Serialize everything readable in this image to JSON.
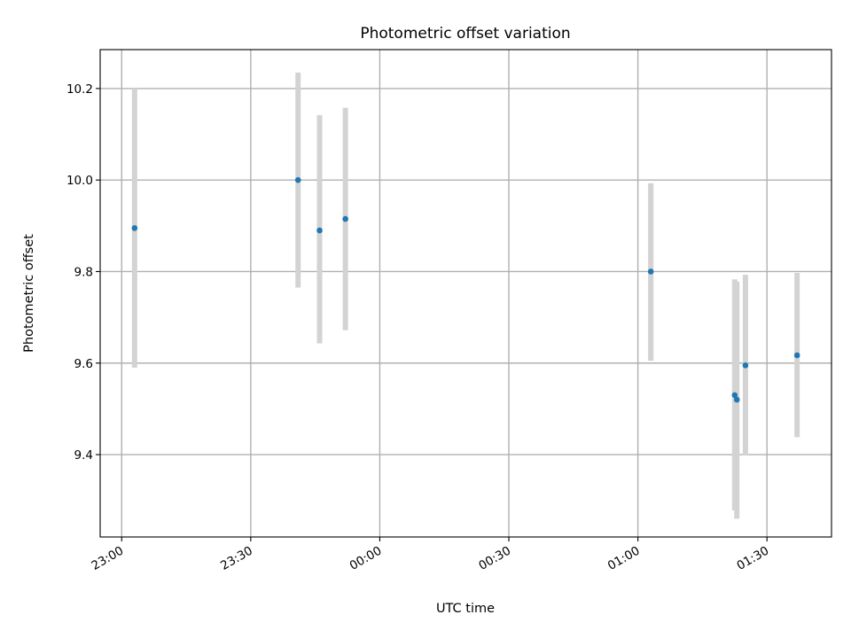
{
  "chart_data": {
    "type": "scatter",
    "title": "Photometric offset variation",
    "xlabel": "UTC time",
    "ylabel": "Photometric offset",
    "x_unit": "UTC clock time (HH:MM, crossing midnight)",
    "x_ticks": [
      "23:00",
      "23:30",
      "00:00",
      "00:30",
      "01:00",
      "01:30"
    ],
    "y_ticks": [
      "9.4",
      "9.6",
      "9.8",
      "10.0",
      "10.2"
    ],
    "xlim": [
      "22:55",
      "01:45"
    ],
    "ylim": [
      9.22,
      10.285
    ],
    "grid": true,
    "colors": {
      "point": "#1f77b4",
      "errorbar": "#d3d3d3",
      "grid": "#b0b0b0"
    },
    "points": [
      {
        "x": "23:03",
        "y": 9.895,
        "err_low": 9.59,
        "err_high": 10.2
      },
      {
        "x": "23:41",
        "y": 10.0,
        "err_low": 9.765,
        "err_high": 10.235
      },
      {
        "x": "23:46",
        "y": 9.89,
        "err_low": 9.643,
        "err_high": 10.142
      },
      {
        "x": "23:52",
        "y": 9.915,
        "err_low": 9.672,
        "err_high": 10.158
      },
      {
        "x": "01:03",
        "y": 9.8,
        "err_low": 9.605,
        "err_high": 9.993
      },
      {
        "x": "01:22.5",
        "y": 9.53,
        "err_low": 9.278,
        "err_high": 9.783
      },
      {
        "x": "01:23",
        "y": 9.52,
        "err_low": 9.26,
        "err_high": 9.778
      },
      {
        "x": "01:25",
        "y": 9.595,
        "err_low": 9.398,
        "err_high": 9.793
      },
      {
        "x": "01:37",
        "y": 9.617,
        "err_low": 9.438,
        "err_high": 9.797
      }
    ]
  }
}
